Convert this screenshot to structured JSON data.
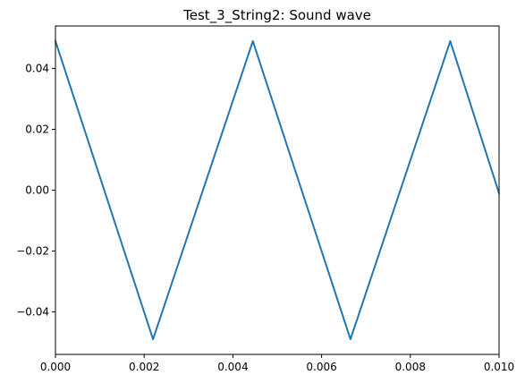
{
  "chart_data": {
    "type": "line",
    "title": "Test_3_String2: Sound wave",
    "xlabel": "",
    "ylabel": "",
    "xlim": [
      0.0,
      0.01
    ],
    "ylim": [
      -0.054,
      0.054
    ],
    "grid": false,
    "x_ticks": [
      "0.000",
      "0.002",
      "0.004",
      "0.006",
      "0.008",
      "0.010"
    ],
    "y_ticks": [
      "0.04",
      "0.02",
      "0.00",
      "−0.02",
      "−0.04"
    ],
    "series": [
      {
        "color": "#1f77b4",
        "x": [
          0.0,
          0.0022,
          0.00445,
          0.00665,
          0.0089,
          0.01
        ],
        "y": [
          0.049,
          -0.049,
          0.049,
          -0.049,
          0.049,
          -0.001
        ]
      }
    ]
  }
}
